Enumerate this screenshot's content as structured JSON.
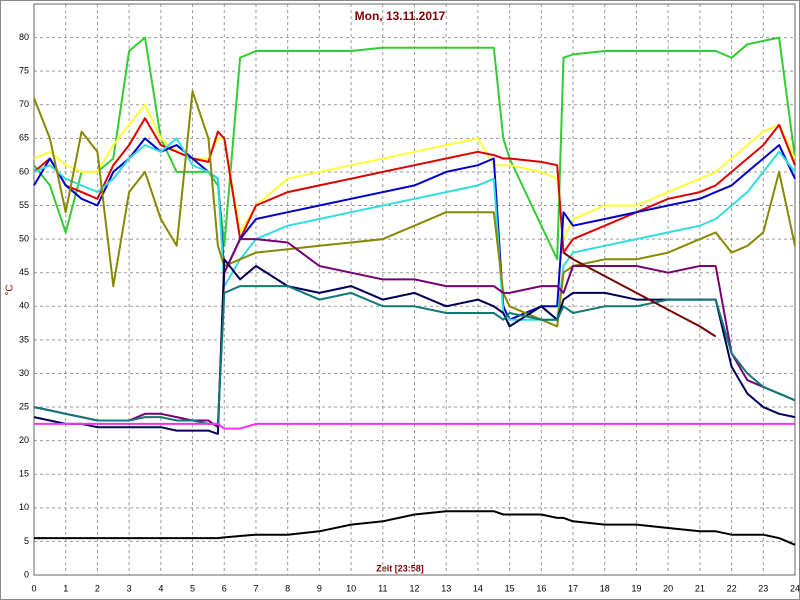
{
  "chart_data": {
    "type": "line",
    "title": "Mon, 13.11.2017",
    "x_label": "Zeit [23:58]",
    "y_label": "°C",
    "xlim": [
      0,
      24
    ],
    "xticks": [
      0,
      1,
      2,
      3,
      4,
      5,
      6,
      7,
      8,
      9,
      10,
      11,
      12,
      13,
      14,
      15,
      16,
      17,
      18,
      19,
      20,
      21,
      22,
      23,
      24
    ],
    "ylim": [
      0,
      85
    ],
    "yticks": [
      0,
      5,
      10,
      15,
      20,
      25,
      30,
      35,
      40,
      45,
      50,
      55,
      60,
      65,
      70,
      75,
      80
    ],
    "grid": true,
    "x": [
      0,
      0.5,
      1,
      1.5,
      2,
      2.5,
      3,
      3.5,
      4,
      4.5,
      5,
      5.5,
      5.8,
      6,
      6.5,
      7,
      8,
      9,
      10,
      11,
      12,
      13,
      14,
      14.5,
      14.8,
      15,
      16,
      16.5,
      16.7,
      17,
      18,
      19,
      20,
      21,
      21.5,
      22,
      22.5,
      23,
      23.5,
      24
    ],
    "series": [
      {
        "color": "#33cc33",
        "values": [
          61,
          58,
          51,
          60,
          60,
          62,
          78,
          80,
          65,
          60,
          60,
          60,
          58,
          49,
          77,
          78,
          78,
          78,
          78,
          78.5,
          78.5,
          78.5,
          78.5,
          78.5,
          65,
          62,
          52,
          47,
          77,
          77.5,
          78,
          78,
          78,
          78,
          78,
          77,
          79,
          79.5,
          80,
          62
        ]
      },
      {
        "color": "#ffff33",
        "values": [
          62,
          63,
          61,
          60,
          60,
          64,
          67,
          70,
          65,
          63,
          62,
          62,
          65,
          65,
          51,
          55,
          59,
          60,
          61,
          62,
          63,
          64,
          65,
          61,
          61,
          61,
          60,
          59,
          50,
          53,
          55,
          55,
          57,
          59,
          60,
          62,
          64,
          66,
          67,
          62
        ]
      },
      {
        "color": "#dd0000",
        "values": [
          60,
          62,
          58,
          57,
          56,
          61,
          64,
          68,
          64,
          63,
          62,
          61.5,
          66,
          65,
          50,
          55,
          57,
          58,
          59,
          60,
          61,
          62,
          63,
          62.5,
          62,
          62,
          61.5,
          61,
          48,
          50,
          52,
          54,
          56,
          57,
          58,
          60,
          62,
          64,
          67,
          61
        ]
      },
      {
        "color": "#0000cc",
        "values": [
          58,
          62,
          58,
          56,
          55,
          60,
          62,
          65,
          63,
          64,
          62,
          60,
          59,
          45,
          50,
          53,
          54,
          55,
          56,
          57,
          58,
          60,
          61,
          62,
          40,
          38,
          40,
          40,
          54,
          52,
          53,
          54,
          55,
          56,
          57,
          58,
          60,
          62,
          64,
          59
        ]
      },
      {
        "color": "#33dddd",
        "values": [
          60,
          61,
          59,
          58,
          57,
          59,
          62,
          64,
          63,
          65,
          61,
          60,
          59,
          43,
          47,
          50,
          52,
          53,
          54,
          55,
          56,
          57,
          58,
          59,
          39,
          38,
          38,
          38,
          46,
          48,
          49,
          50,
          51,
          52,
          53,
          55,
          57,
          60,
          63,
          60
        ]
      },
      {
        "color": "#888800",
        "values": [
          71,
          65,
          54,
          66,
          63,
          43,
          57,
          60,
          53,
          49,
          72,
          65,
          49,
          46,
          47,
          48,
          48.5,
          49,
          49.5,
          50,
          52,
          54,
          54,
          54,
          42,
          40,
          38,
          37,
          45,
          46,
          47,
          47,
          48,
          50,
          51,
          48,
          49,
          51,
          60,
          49
        ]
      },
      {
        "color": "#770077",
        "values": [
          25,
          24.5,
          24,
          23.5,
          23,
          23,
          23,
          24,
          24,
          23.5,
          23,
          23,
          22,
          45,
          50,
          50,
          49.5,
          46,
          45,
          44,
          44,
          43,
          43,
          43,
          42,
          42,
          43,
          43,
          42,
          46,
          46,
          46,
          45,
          46,
          46,
          33,
          29,
          28,
          27,
          26
        ]
      },
      {
        "color": "#000055",
        "values": [
          23.5,
          23,
          22.5,
          22.5,
          22,
          22,
          22,
          22,
          22,
          21.5,
          21.5,
          21.5,
          21,
          47,
          44,
          46,
          43,
          42,
          43,
          41,
          42,
          40,
          41,
          40,
          39,
          37,
          40,
          38,
          41,
          42,
          42,
          41,
          41,
          41,
          41,
          31,
          27,
          25,
          24,
          23.5
        ]
      },
      {
        "color": "#117777",
        "values": [
          25,
          24.5,
          24,
          23.5,
          23,
          23,
          23,
          23.5,
          23.5,
          23,
          23,
          22.5,
          22.5,
          42,
          43,
          43,
          43,
          41,
          42,
          40,
          40,
          39,
          39,
          39,
          38,
          39,
          38,
          38,
          40,
          39,
          40,
          40,
          41,
          41,
          41,
          33,
          30,
          28,
          27,
          26
        ]
      },
      {
        "color": "#ee33ee",
        "values": [
          22.5,
          22.5,
          22.5,
          22.5,
          22.5,
          22.5,
          22.5,
          22.5,
          22.5,
          22.5,
          22.5,
          22.5,
          22.5,
          21.8,
          21.8,
          22.5,
          22.5,
          22.5,
          22.5,
          22.5,
          22.5,
          22.5,
          22.5,
          22.5,
          22.5,
          22.5,
          22.5,
          22.5,
          22.5,
          22.5,
          22.5,
          22.5,
          22.5,
          22.5,
          22.5,
          22.5,
          22.5,
          22.5,
          22.5,
          22.5
        ]
      },
      {
        "color": "#000000",
        "values": [
          5.5,
          5.5,
          5.5,
          5.5,
          5.5,
          5.5,
          5.5,
          5.5,
          5.5,
          5.5,
          5.5,
          5.5,
          5.5,
          5.6,
          5.8,
          6,
          6,
          6.5,
          7.5,
          8,
          9,
          9.5,
          9.5,
          9.5,
          9,
          9,
          9,
          8.5,
          8.5,
          8,
          7.5,
          7.5,
          7,
          6.5,
          6.5,
          6,
          6,
          6,
          5.5,
          4.5
        ]
      },
      {
        "color": "#770000",
        "values": [
          null,
          null,
          null,
          null,
          null,
          null,
          null,
          null,
          null,
          null,
          null,
          null,
          null,
          null,
          null,
          null,
          null,
          null,
          null,
          null,
          null,
          null,
          null,
          null,
          null,
          null,
          null,
          null,
          48,
          47,
          44.5,
          42,
          39.5,
          37,
          35.5,
          null,
          null,
          null,
          null,
          null
        ]
      }
    ]
  }
}
